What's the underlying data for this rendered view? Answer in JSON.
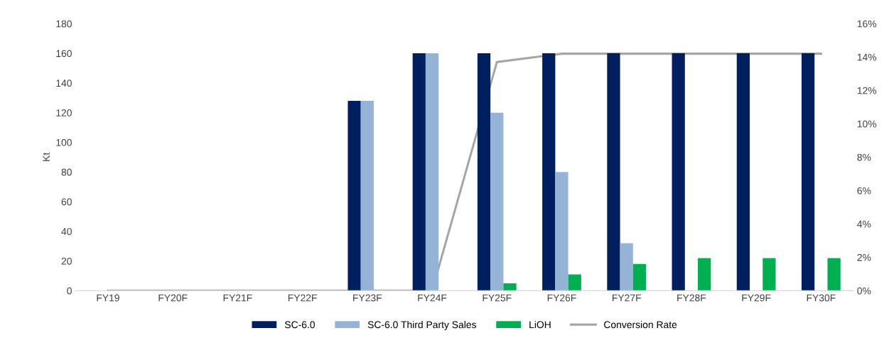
{
  "chart_data": {
    "type": "bar",
    "ylabel": "Kt",
    "categories": [
      "FY19",
      "FY20F",
      "FY21F",
      "FY22F",
      "FY23F",
      "FY24F",
      "FY25F",
      "FY26F",
      "FY27F",
      "FY28F",
      "FY29F",
      "FY30F"
    ],
    "series": [
      {
        "name": "SC-6.0",
        "color": "#001f5f",
        "values": [
          0,
          0,
          0,
          0,
          128,
          160,
          160,
          160,
          160,
          160,
          160,
          160
        ]
      },
      {
        "name": "SC-6.0 Third Party Sales",
        "color": "#95b3d7",
        "values": [
          0,
          0,
          0,
          0,
          128,
          160,
          120,
          80,
          32,
          0,
          0,
          0
        ]
      },
      {
        "name": "LiOH",
        "color": "#00b050",
        "values": [
          0,
          0,
          0,
          0,
          0,
          0,
          5,
          11,
          18,
          22,
          22,
          22
        ]
      },
      {
        "name": "Conversion Rate",
        "type": "line",
        "axis": "y2",
        "color": "#a6a6a6",
        "values": [
          0,
          0,
          0,
          0,
          0,
          0,
          13.7,
          14.2,
          14.2,
          14.2,
          14.2,
          14.2
        ]
      }
    ],
    "ylim": [
      0,
      180
    ],
    "yticks": [
      0,
      20,
      40,
      60,
      80,
      100,
      120,
      140,
      160,
      180
    ],
    "y2lim": [
      0,
      16
    ],
    "y2ticks": [
      {
        "value": 0,
        "label": "0%"
      },
      {
        "value": 2,
        "label": "2%"
      },
      {
        "value": 4,
        "label": "4%"
      },
      {
        "value": 6,
        "label": "6%"
      },
      {
        "value": 8,
        "label": "8%"
      },
      {
        "value": 10,
        "label": "10%"
      },
      {
        "value": 12,
        "label": "12%"
      },
      {
        "value": 14,
        "label": "14%"
      },
      {
        "value": 16,
        "label": "16%"
      }
    ],
    "legend": "bottom",
    "grid": false,
    "line_style": "solid",
    "marker": "none"
  }
}
